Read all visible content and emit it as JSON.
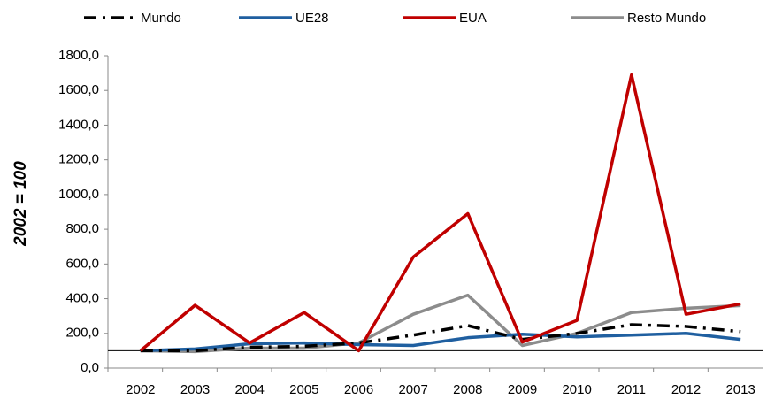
{
  "chart_data": {
    "type": "line",
    "y_label": "2002 = 100",
    "categories": [
      "2002",
      "2003",
      "2004",
      "2005",
      "2006",
      "2007",
      "2008",
      "2009",
      "2010",
      "2011",
      "2012",
      "2013"
    ],
    "series": [
      {
        "name": "Mundo",
        "color": "#000000",
        "style": "dashdot",
        "values": [
          100,
          100,
          120,
          125,
          145,
          190,
          245,
          165,
          200,
          250,
          240,
          210
        ]
      },
      {
        "name": "UE28",
        "color": "#1f5fa0",
        "style": "solid",
        "values": [
          100,
          110,
          140,
          145,
          135,
          130,
          175,
          195,
          180,
          190,
          200,
          165
        ]
      },
      {
        "name": "EUA",
        "color": "#c00000",
        "style": "solid",
        "values": [
          100,
          362,
          145,
          320,
          100,
          640,
          890,
          150,
          275,
          1690,
          310,
          370
        ]
      },
      {
        "name": "Resto Mundo",
        "color": "#8c8c8c",
        "style": "solid",
        "values": [
          100,
          95,
          115,
          115,
          145,
          310,
          420,
          130,
          200,
          320,
          345,
          360
        ]
      }
    ],
    "ylim": [
      0,
      1800
    ],
    "yticks": [
      {
        "value": 0,
        "label": "0,0"
      },
      {
        "value": 200,
        "label": "200,0"
      },
      {
        "value": 400,
        "label": "400,0"
      },
      {
        "value": 600,
        "label": "600,0"
      },
      {
        "value": 800,
        "label": "800,0"
      },
      {
        "value": 1000,
        "label": "1000,0"
      },
      {
        "value": 1200,
        "label": "1200,0"
      },
      {
        "value": 1400,
        "label": "1400,0"
      },
      {
        "value": 1600,
        "label": "1600,0"
      },
      {
        "value": 1800,
        "label": "1800,0"
      }
    ],
    "reference_line": 100,
    "grid": false,
    "legend": "top"
  }
}
